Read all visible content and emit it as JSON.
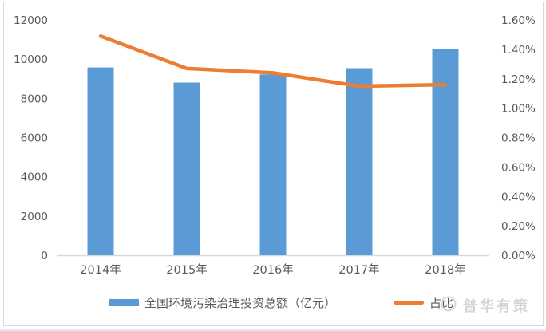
{
  "chart_data": {
    "type": "bar",
    "subtype": "bar+line combo",
    "categories": [
      "2014年",
      "2015年",
      "2016年",
      "2017年",
      "2018年"
    ],
    "series": [
      {
        "name": "全国环境污染治理投资总额（亿元）",
        "type": "bar",
        "axis": "left",
        "values": [
          9575.5,
          8806.3,
          9219.8,
          9539.0,
          10522.9
        ],
        "color": "#5B9BD5"
      },
      {
        "name": "占比",
        "type": "line",
        "axis": "right",
        "values": [
          1.49,
          1.27,
          1.24,
          1.15,
          1.16
        ],
        "unit": "%",
        "color": "#ED7D31"
      }
    ],
    "left_axis": {
      "min": 0,
      "max": 12000,
      "step": 2000,
      "tick_labels": [
        "0",
        "2000",
        "4000",
        "6000",
        "8000",
        "10000",
        "12000"
      ]
    },
    "right_axis": {
      "min": 0,
      "max": 1.6,
      "step": 0.2,
      "tick_labels": [
        "0.00%",
        "0.20%",
        "0.40%",
        "0.60%",
        "0.80%",
        "1.00%",
        "1.20%",
        "1.40%",
        "1.60%"
      ]
    },
    "grid": false,
    "legend_position": "bottom",
    "title": ""
  },
  "legend": {
    "bar_label": "全国环境污染治理投资总额（亿元）",
    "line_label": "占比"
  },
  "watermark": {
    "text": "普华有策"
  },
  "colors": {
    "bar": "#5B9BD5",
    "line": "#ED7D31",
    "tick_text": "#595959",
    "axis_line": "#d9d9d9",
    "frame": "#d9d9d9",
    "watermark": "#d4d4d4"
  }
}
